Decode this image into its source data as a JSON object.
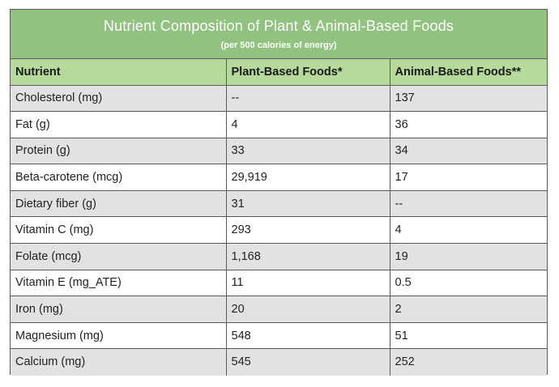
{
  "colors": {
    "title_bg": "#91c27f",
    "header_bg": "#b5da9c",
    "row_shade": "#e2e2e2",
    "border": "#5a5a5a"
  },
  "chart_data": {
    "type": "table",
    "title": "Nutrient Composition of Plant & Animal-Based Foods",
    "subtitle": "(per 500 calories of energy)",
    "columns": [
      "Nutrient",
      "Plant-Based Foods*",
      "Animal-Based Foods**"
    ],
    "rows": [
      [
        "Cholesterol (mg)",
        "--",
        "137"
      ],
      [
        "Fat (g)",
        "4",
        "36"
      ],
      [
        "Protein (g)",
        "33",
        "34"
      ],
      [
        "Beta-carotene (mcg)",
        "29,919",
        "17"
      ],
      [
        "Dietary fiber (g)",
        "31",
        "--"
      ],
      [
        "Vitamin C (mg)",
        "293",
        "4"
      ],
      [
        "Folate (mcg)",
        "1,168",
        "19"
      ],
      [
        "Vitamin E (mg_ATE)",
        "11",
        "0.5"
      ],
      [
        "Iron (mg)",
        "20",
        "2"
      ],
      [
        "Magnesium (mg)",
        "548",
        "51"
      ],
      [
        "Calcium (mg)",
        "545",
        "252"
      ]
    ]
  }
}
